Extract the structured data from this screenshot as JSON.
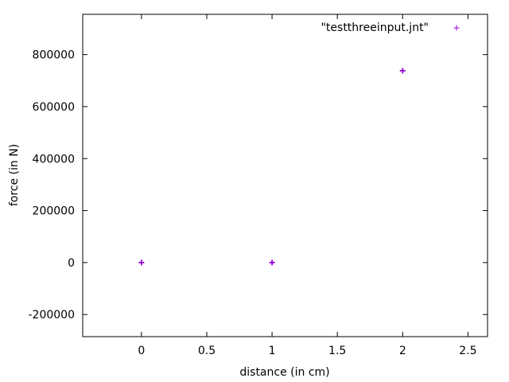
{
  "chart_data": {
    "type": "scatter",
    "xlabel": "distance (in cm)",
    "ylabel": "force (in N)",
    "xlim": [
      -0.45,
      2.65
    ],
    "ylim": [
      -285000,
      955000
    ],
    "xticks": [
      0,
      0.5,
      1,
      1.5,
      2,
      2.5
    ],
    "xtick_labels": [
      "0",
      "0.5",
      "1",
      "1.5",
      "2",
      "2.5"
    ],
    "yticks": [
      -200000,
      0,
      200000,
      400000,
      600000,
      800000
    ],
    "ytick_labels": [
      "-200000",
      "0",
      "200000",
      "400000",
      "600000",
      "800000"
    ],
    "grid": false,
    "legend_position": "top-right",
    "series": [
      {
        "name": "\"testthreeinput.jnt\"",
        "color": "#9400d3",
        "marker": "plus",
        "x": [
          0,
          1,
          2
        ],
        "y": [
          0,
          0,
          738000
        ]
      }
    ]
  }
}
